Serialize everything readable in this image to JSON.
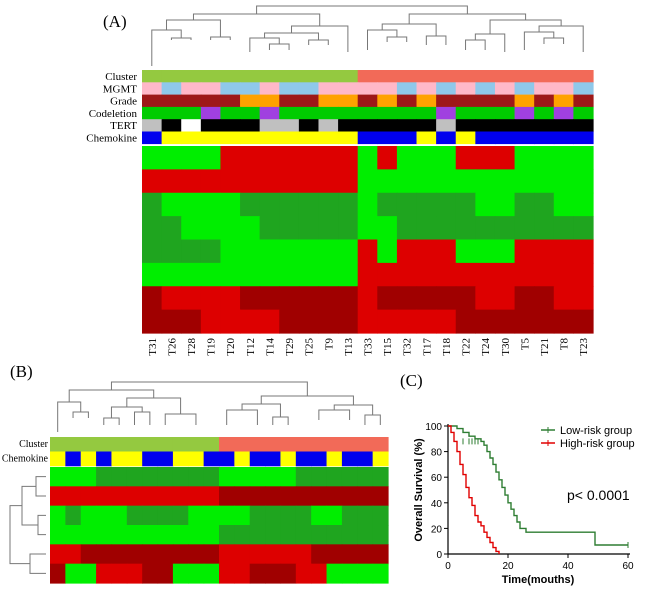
{
  "panels": {
    "a": "(A)",
    "b": "(B)",
    "c": "(C)"
  },
  "colors": {
    "bright_green": "#00ee00",
    "green": "#1fa51f",
    "red": "#dd0000",
    "dark_red": "#a00000",
    "cluster_low": "#94c940",
    "cluster_high": "#f26a58",
    "mgmt_a": "#ffb8c8",
    "mgmt_b": "#8fc8ea",
    "grade_dark": "#9e1818",
    "grade_orange": "#ffa200",
    "codel_green": "#00cc00",
    "codel_purple": "#a040e0",
    "tert_gray": "#c0c0c0",
    "tert_black": "#000000",
    "tert_white": "#ffffff",
    "chem_blue": "#0000ee",
    "chem_yellow": "#ffff00",
    "km_low": "#2e7d32",
    "km_high": "#e00000"
  },
  "panel_a": {
    "annotation_labels": [
      "Cluster",
      "MGMT",
      "Grade",
      "Codeletion",
      "TERT",
      "Chemokine"
    ],
    "samples": [
      "T31",
      "T26",
      "T28",
      "T19",
      "T20",
      "T12",
      "T14",
      "T29",
      "T25",
      "T9",
      "T13",
      "T33",
      "T15",
      "T32",
      "T17",
      "T18",
      "T22",
      "T24",
      "T30",
      "T5",
      "T21",
      "T8",
      "T23"
    ],
    "cluster": [
      "L",
      "L",
      "L",
      "L",
      "L",
      "L",
      "L",
      "L",
      "L",
      "L",
      "L",
      "H",
      "H",
      "H",
      "H",
      "H",
      "H",
      "H",
      "H",
      "H",
      "H",
      "H",
      "H"
    ],
    "mgmt": [
      "a",
      "b",
      "a",
      "a",
      "b",
      "b",
      "a",
      "b",
      "b",
      "a",
      "a",
      "a",
      "a",
      "b",
      "a",
      "b",
      "a",
      "b",
      "a",
      "b",
      "a",
      "a",
      "b"
    ],
    "grade": [
      "d",
      "d",
      "d",
      "d",
      "d",
      "o",
      "o",
      "d",
      "d",
      "o",
      "o",
      "d",
      "o",
      "d",
      "o",
      "d",
      "d",
      "d",
      "d",
      "o",
      "d",
      "o",
      "d"
    ],
    "codeletion": [
      "g",
      "g",
      "g",
      "p",
      "g",
      "g",
      "p",
      "g",
      "g",
      "g",
      "g",
      "g",
      "g",
      "g",
      "g",
      "p",
      "g",
      "g",
      "g",
      "p",
      "g",
      "p",
      "g"
    ],
    "tert": [
      "g",
      "k",
      "w",
      "k",
      "k",
      "k",
      "g",
      "g",
      "k",
      "g",
      "k",
      "k",
      "k",
      "k",
      "k",
      "g",
      "k",
      "k",
      "k",
      "k",
      "k",
      "k",
      "k"
    ],
    "chemokine": [
      "b",
      "y",
      "y",
      "y",
      "y",
      "y",
      "y",
      "y",
      "y",
      "y",
      "y",
      "b",
      "b",
      "b",
      "y",
      "b",
      "y",
      "b",
      "b",
      "b",
      "b",
      "b",
      "b"
    ],
    "rows": [
      [
        "G",
        "G",
        "G",
        "G",
        "R",
        "R",
        "R",
        "R",
        "R",
        "R",
        "R",
        "G",
        "R",
        "G",
        "G",
        "G",
        "R",
        "R",
        "R",
        "G",
        "G",
        "G",
        "G"
      ],
      [
        "R",
        "R",
        "R",
        "R",
        "R",
        "R",
        "R",
        "R",
        "R",
        "R",
        "R",
        "G",
        "G",
        "G",
        "G",
        "G",
        "G",
        "G",
        "G",
        "G",
        "G",
        "G",
        "G"
      ],
      [
        "D",
        "G",
        "G",
        "G",
        "G",
        "D",
        "D",
        "D",
        "D",
        "D",
        "D",
        "G",
        "D",
        "D",
        "D",
        "D",
        "D",
        "G",
        "G",
        "D",
        "D",
        "G",
        "G"
      ],
      [
        "D",
        "D",
        "G",
        "G",
        "G",
        "G",
        "D",
        "D",
        "D",
        "D",
        "D",
        "G",
        "G",
        "D",
        "D",
        "D",
        "D",
        "D",
        "D",
        "D",
        "D",
        "D",
        "D"
      ],
      [
        "D",
        "D",
        "D",
        "D",
        "G",
        "G",
        "G",
        "G",
        "G",
        "G",
        "G",
        "R",
        "G",
        "R",
        "R",
        "R",
        "G",
        "G",
        "G",
        "R",
        "R",
        "R",
        "R"
      ],
      [
        "G",
        "G",
        "G",
        "G",
        "G",
        "G",
        "G",
        "G",
        "G",
        "G",
        "G",
        "R",
        "R",
        "R",
        "R",
        "R",
        "R",
        "R",
        "R",
        "R",
        "R",
        "R",
        "R"
      ],
      [
        "V",
        "R",
        "R",
        "R",
        "R",
        "V",
        "V",
        "V",
        "V",
        "V",
        "V",
        "R",
        "V",
        "V",
        "V",
        "V",
        "V",
        "R",
        "R",
        "V",
        "V",
        "R",
        "R"
      ],
      [
        "V",
        "V",
        "V",
        "R",
        "R",
        "R",
        "R",
        "V",
        "V",
        "V",
        "V",
        "R",
        "R",
        "R",
        "R",
        "R",
        "V",
        "V",
        "V",
        "V",
        "V",
        "V",
        "V"
      ]
    ]
  },
  "panel_b": {
    "annotation_labels": [
      "Cluster",
      "Chemokine"
    ],
    "cluster": [
      "L",
      "L",
      "L",
      "L",
      "L",
      "L",
      "L",
      "L",
      "L",
      "L",
      "L",
      "H",
      "H",
      "H",
      "H",
      "H",
      "H",
      "H",
      "H",
      "H",
      "H",
      "H"
    ],
    "chemokine": [
      "y",
      "b",
      "y",
      "b",
      "y",
      "y",
      "b",
      "b",
      "y",
      "y",
      "b",
      "b",
      "y",
      "b",
      "b",
      "y",
      "b",
      "b",
      "y",
      "b",
      "b",
      "y"
    ],
    "rows": [
      [
        "G",
        "G",
        "G",
        "D",
        "D",
        "D",
        "D",
        "D",
        "D",
        "D",
        "D",
        "G",
        "G",
        "G",
        "G",
        "G",
        "D",
        "D",
        "D",
        "D",
        "D",
        "D"
      ],
      [
        "R",
        "R",
        "R",
        "R",
        "R",
        "R",
        "R",
        "R",
        "R",
        "R",
        "R",
        "V",
        "V",
        "V",
        "V",
        "V",
        "V",
        "V",
        "V",
        "V",
        "V",
        "V"
      ],
      [
        "G",
        "D",
        "G",
        "G",
        "G",
        "D",
        "D",
        "D",
        "D",
        "G",
        "G",
        "G",
        "G",
        "D",
        "D",
        "D",
        "D",
        "G",
        "G",
        "D",
        "D",
        "D"
      ],
      [
        "G",
        "G",
        "G",
        "G",
        "G",
        "G",
        "G",
        "G",
        "G",
        "G",
        "G",
        "D",
        "D",
        "D",
        "D",
        "D",
        "D",
        "D",
        "D",
        "D",
        "D",
        "D"
      ],
      [
        "R",
        "R",
        "V",
        "V",
        "V",
        "V",
        "V",
        "V",
        "V",
        "V",
        "V",
        "R",
        "R",
        "R",
        "R",
        "R",
        "R",
        "V",
        "V",
        "V",
        "V",
        "V"
      ],
      [
        "V",
        "G",
        "G",
        "R",
        "R",
        "R",
        "V",
        "V",
        "G",
        "G",
        "G",
        "R",
        "R",
        "V",
        "V",
        "V",
        "R",
        "R",
        "G",
        "G",
        "G",
        "G"
      ]
    ]
  },
  "chart_data": {
    "type": "line",
    "title": "",
    "xlabel": "Time(mouths)",
    "ylabel": "Overall Survival (%)",
    "xlim": [
      0,
      60
    ],
    "ylim": [
      0,
      100
    ],
    "xticks": [
      0,
      20,
      40,
      60
    ],
    "yticks": [
      0,
      20,
      40,
      60,
      80,
      100
    ],
    "annotation": "p< 0.0001",
    "legend_position": "top-right",
    "series": [
      {
        "name": "Low-risk group",
        "color": "#2e7d32",
        "steps": [
          [
            0,
            100
          ],
          [
            3,
            98
          ],
          [
            5,
            95
          ],
          [
            7,
            92
          ],
          [
            9,
            90
          ],
          [
            11,
            88
          ],
          [
            12,
            85
          ],
          [
            13,
            80
          ],
          [
            14,
            75
          ],
          [
            15,
            70
          ],
          [
            16,
            64
          ],
          [
            17,
            58
          ],
          [
            18,
            52
          ],
          [
            19,
            46
          ],
          [
            20,
            40
          ],
          [
            21,
            35
          ],
          [
            22,
            30
          ],
          [
            23,
            25
          ],
          [
            24,
            20
          ],
          [
            26,
            17
          ],
          [
            48,
            17
          ],
          [
            49,
            7
          ],
          [
            60,
            7
          ]
        ],
        "censor": [
          [
            5,
            88
          ],
          [
            7,
            88
          ],
          [
            8,
            88
          ],
          [
            9,
            88
          ],
          [
            10,
            88
          ],
          [
            60,
            7
          ]
        ]
      },
      {
        "name": "High-risk group",
        "color": "#e00000",
        "steps": [
          [
            0,
            100
          ],
          [
            1,
            95
          ],
          [
            2,
            88
          ],
          [
            3,
            80
          ],
          [
            4,
            70
          ],
          [
            5,
            62
          ],
          [
            6,
            52
          ],
          [
            7,
            44
          ],
          [
            8,
            38
          ],
          [
            9,
            30
          ],
          [
            10,
            25
          ],
          [
            11,
            22
          ],
          [
            12,
            17
          ],
          [
            13,
            13
          ],
          [
            14,
            9
          ],
          [
            15,
            5
          ],
          [
            16,
            2
          ],
          [
            17,
            0
          ]
        ],
        "censor": []
      }
    ]
  }
}
